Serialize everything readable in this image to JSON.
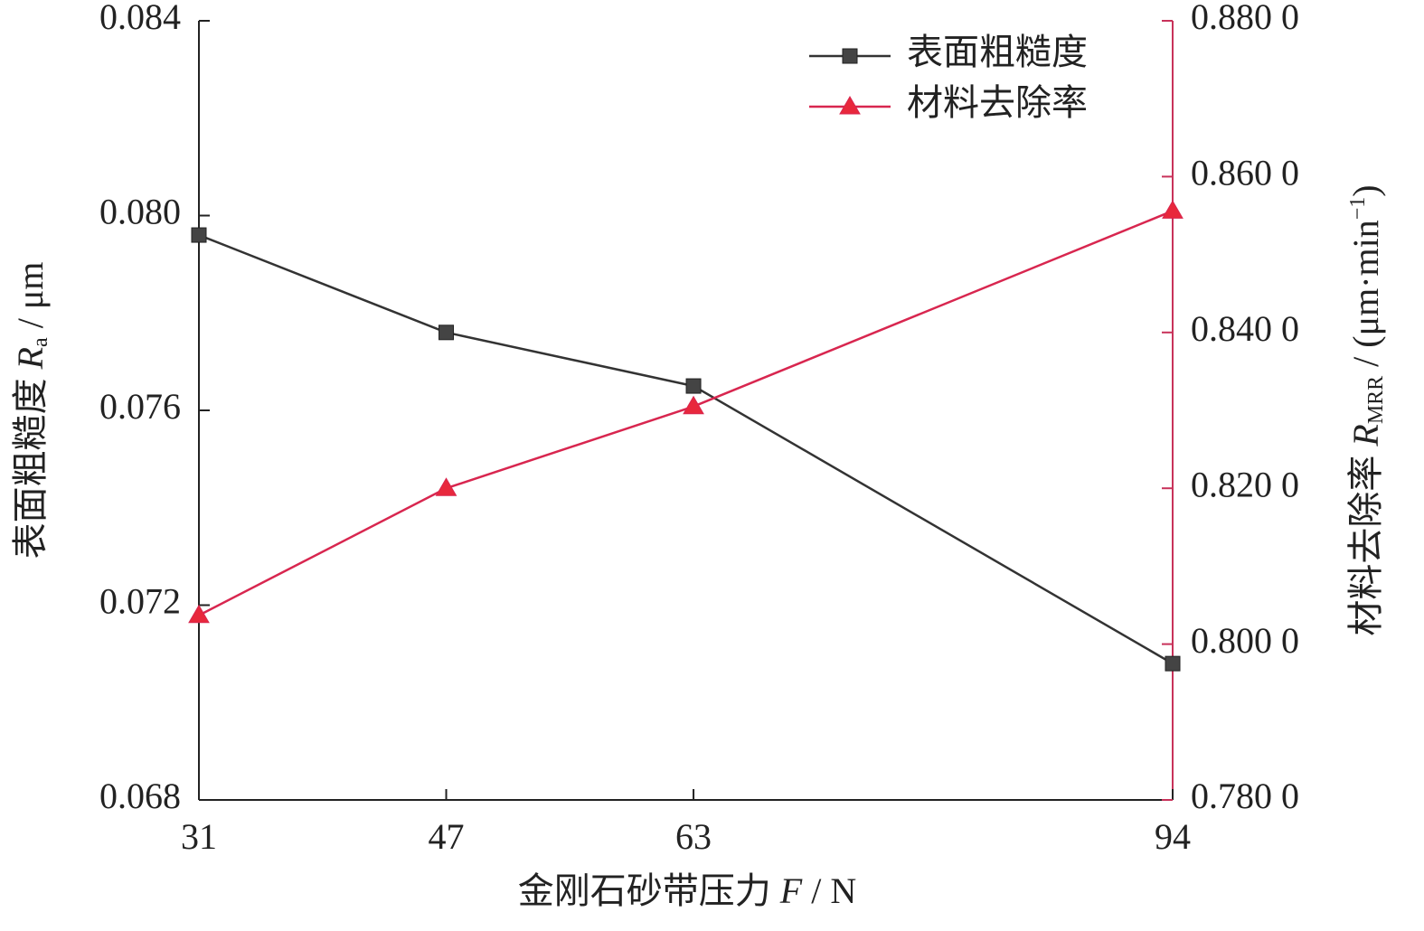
{
  "chart_data": {
    "type": "line",
    "x": [
      31,
      47,
      63,
      94
    ],
    "xlim": [
      31,
      94
    ],
    "xticks": [
      31,
      47,
      63,
      94
    ],
    "ylim": [
      0.068,
      0.084
    ],
    "yticks": [
      0.068,
      0.072,
      0.076,
      {
        "value": 0.08,
        "label": "0.080"
      },
      0.084
    ],
    "y2lim": [
      0.78,
      0.88
    ],
    "y2ticks": [
      {
        "value": 0.78,
        "label": "0.780 0"
      },
      {
        "value": 0.8,
        "label": "0.800 0"
      },
      {
        "value": 0.82,
        "label": "0.820 0"
      },
      {
        "value": 0.84,
        "label": "0.840 0"
      },
      {
        "value": 0.86,
        "label": "0.860 0"
      },
      {
        "value": 0.88,
        "label": "0.880 0"
      }
    ],
    "y2_color": "#c8325a",
    "xlabel": [
      "金刚石砂带压力 ",
      "F",
      " / N"
    ],
    "ylabel": [
      "表面粗糙度 ",
      "R",
      "a",
      " / μm"
    ],
    "y2label": [
      "材料去除率 ",
      "R",
      "MRR",
      " / (μm·min",
      "−1",
      ")"
    ],
    "legend": "upper right",
    "series": [
      {
        "name": "表面粗糙度",
        "color": "#333333",
        "marker": "square",
        "values": [
          0.0796,
          0.0776,
          0.0765,
          0.0708
        ]
      },
      {
        "name": "材料去除率",
        "color": "#d8264f",
        "marker": "triangle",
        "axis": "y2",
        "values": [
          0.8037,
          0.82,
          0.8305,
          0.8556
        ]
      }
    ]
  }
}
